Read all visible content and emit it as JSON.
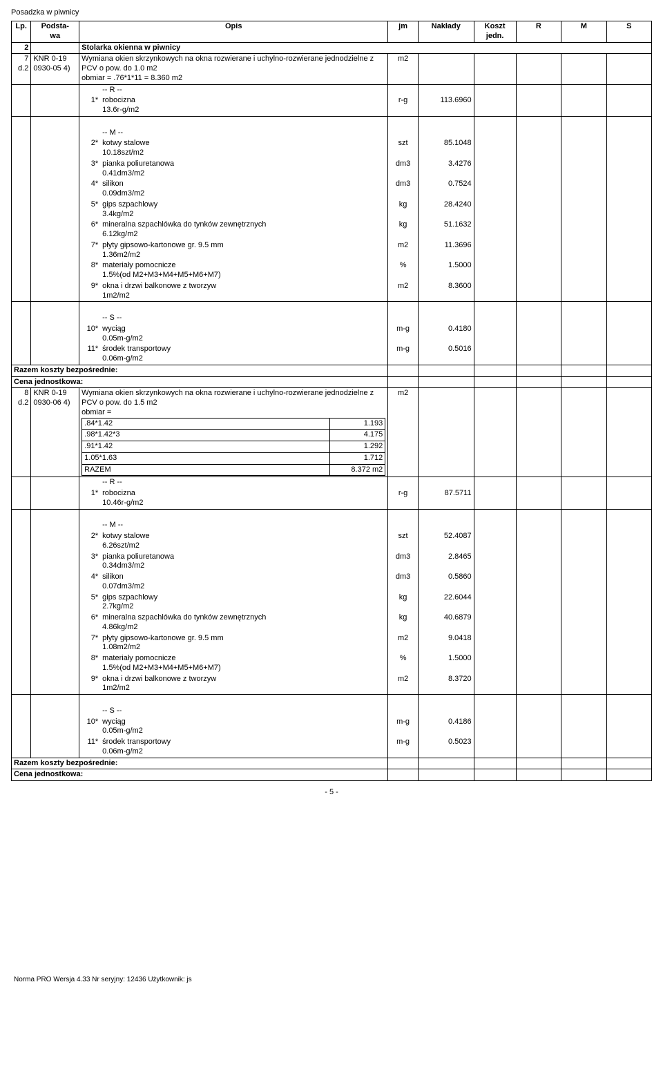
{
  "doc_title": "Posadzka w piwnicy",
  "headers": {
    "lp": "Lp.",
    "podstawa": "Podsta-\nwa",
    "opis": "Opis",
    "jm": "jm",
    "naklady": "Nakłady",
    "koszt": "Koszt\njedn.",
    "r": "R",
    "m": "M",
    "s": "S"
  },
  "section": {
    "lp": "2",
    "title": "Stolarka okienna w piwnicy"
  },
  "item7": {
    "lp1": "7",
    "lp2": "d.2",
    "pod1": "KNR 0-19",
    "pod2": "0930-05 4)",
    "opis": "Wymiana okien skrzynkowych na okna rozwierane i uchylno-rozwierane jednodzielne z PCV o pow. do 1.0 m2\nobmiar = .76*1*11 = 8.360 m2",
    "jm": "m2"
  },
  "item7_lines": [
    {
      "num": "",
      "opis": "-- R --",
      "jm": "",
      "val": ""
    },
    {
      "num": "1*",
      "opis": "robocizna\n13.6r-g/m2",
      "jm": "r-g",
      "val": "113.6960"
    },
    {
      "num": "",
      "opis": "-- M --",
      "jm": "",
      "val": ""
    },
    {
      "num": "2*",
      "opis": "kotwy stalowe\n10.18szt/m2",
      "jm": "szt",
      "val": "85.1048"
    },
    {
      "num": "3*",
      "opis": "pianka poliuretanowa\n0.41dm3/m2",
      "jm": "dm3",
      "val": "3.4276"
    },
    {
      "num": "4*",
      "opis": "silikon\n0.09dm3/m2",
      "jm": "dm3",
      "val": "0.7524"
    },
    {
      "num": "5*",
      "opis": "gips szpachlowy\n3.4kg/m2",
      "jm": "kg",
      "val": "28.4240"
    },
    {
      "num": "6*",
      "opis": "mineralna szpachlówka do tynków zewnętrznych\n6.12kg/m2",
      "jm": "kg",
      "val": "51.1632"
    },
    {
      "num": "7*",
      "opis": "płyty gipsowo-kartonowe gr. 9.5 mm\n1.36m2/m2",
      "jm": "m2",
      "val": "11.3696"
    },
    {
      "num": "8*",
      "opis": "materiały pomocnicze\n1.5%(od M2+M3+M4+M5+M6+M7)",
      "jm": "%",
      "val": "1.5000"
    },
    {
      "num": "9*",
      "opis": "okna i drzwi balkonowe z tworzyw\n1m2/m2",
      "jm": "m2",
      "val": "8.3600"
    },
    {
      "num": "",
      "opis": "-- S --",
      "jm": "",
      "val": ""
    },
    {
      "num": "10*",
      "opis": "wyciąg\n0.05m-g/m2",
      "jm": "m-g",
      "val": "0.4180"
    },
    {
      "num": "11*",
      "opis": "środek transportowy\n0.06m-g/m2",
      "jm": "m-g",
      "val": "0.5016"
    }
  ],
  "razem_label": "Razem koszty bezpośrednie:",
  "cena_label": "Cena jednostkowa:",
  "item8": {
    "lp1": "8",
    "lp2": "d.2",
    "pod1": "KNR 0-19",
    "pod2": "0930-06 4)",
    "opis_top": "Wymiana okien skrzynkowych na okna rozwierane i uchylno-rozwierane jednodzielne z PCV o pow. do 1.5 m2\nobmiar =",
    "calc_rows": [
      {
        "label": ".84*1.42",
        "val": "1.193"
      },
      {
        "label": ".98*1.42*3",
        "val": "4.175"
      },
      {
        "label": ".91*1.42",
        "val": "1.292"
      },
      {
        "label": "1.05*1.63",
        "val": "1.712"
      },
      {
        "label": "RAZEM",
        "val": "8.372 m2"
      }
    ],
    "jm": "m2"
  },
  "item8_lines": [
    {
      "num": "",
      "opis": "-- R --",
      "jm": "",
      "val": ""
    },
    {
      "num": "1*",
      "opis": "robocizna\n10.46r-g/m2",
      "jm": "r-g",
      "val": "87.5711"
    },
    {
      "num": "",
      "opis": "-- M --",
      "jm": "",
      "val": ""
    },
    {
      "num": "2*",
      "opis": "kotwy stalowe\n6.26szt/m2",
      "jm": "szt",
      "val": "52.4087"
    },
    {
      "num": "3*",
      "opis": "pianka poliuretanowa\n0.34dm3/m2",
      "jm": "dm3",
      "val": "2.8465"
    },
    {
      "num": "4*",
      "opis": "silikon\n0.07dm3/m2",
      "jm": "dm3",
      "val": "0.5860"
    },
    {
      "num": "5*",
      "opis": "gips szpachlowy\n2.7kg/m2",
      "jm": "kg",
      "val": "22.6044"
    },
    {
      "num": "6*",
      "opis": "mineralna szpachlówka do tynków zewnętrznych\n4.86kg/m2",
      "jm": "kg",
      "val": "40.6879"
    },
    {
      "num": "7*",
      "opis": "płyty gipsowo-kartonowe gr. 9.5 mm\n1.08m2/m2",
      "jm": "m2",
      "val": "9.0418"
    },
    {
      "num": "8*",
      "opis": "materiały pomocnicze\n1.5%(od M2+M3+M4+M5+M6+M7)",
      "jm": "%",
      "val": "1.5000"
    },
    {
      "num": "9*",
      "opis": "okna i drzwi balkonowe z tworzyw\n1m2/m2",
      "jm": "m2",
      "val": "8.3720"
    },
    {
      "num": "",
      "opis": "-- S --",
      "jm": "",
      "val": ""
    },
    {
      "num": "10*",
      "opis": "wyciąg\n0.05m-g/m2",
      "jm": "m-g",
      "val": "0.4186"
    },
    {
      "num": "11*",
      "opis": "środek transportowy\n0.06m-g/m2",
      "jm": "m-g",
      "val": "0.5023"
    }
  ],
  "page_num": "- 5 -",
  "footer": "Norma PRO Wersja 4.33 Nr seryjny: 12436 Użytkownik: js"
}
